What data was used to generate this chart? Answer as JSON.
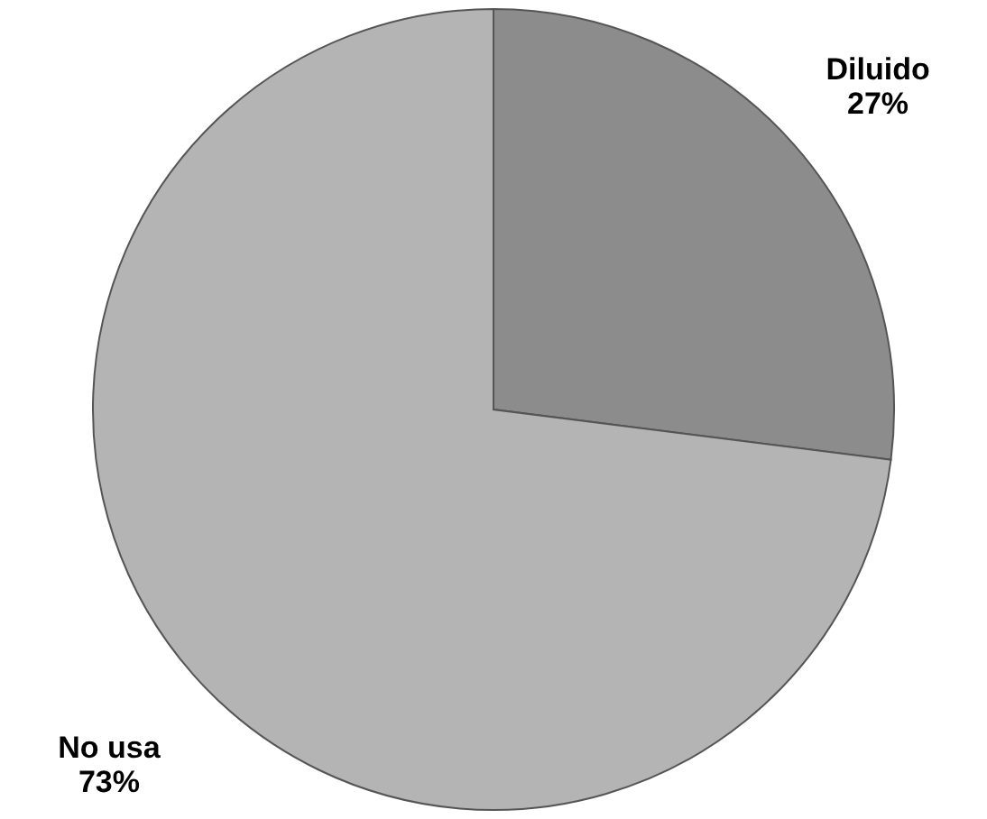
{
  "chart_data": {
    "type": "pie",
    "categories": [
      "Diluido",
      "No usa"
    ],
    "values": [
      27,
      73
    ],
    "value_labels": [
      "27%",
      "73%"
    ],
    "colors": [
      "#8c8c8c",
      "#b4b4b4"
    ]
  }
}
